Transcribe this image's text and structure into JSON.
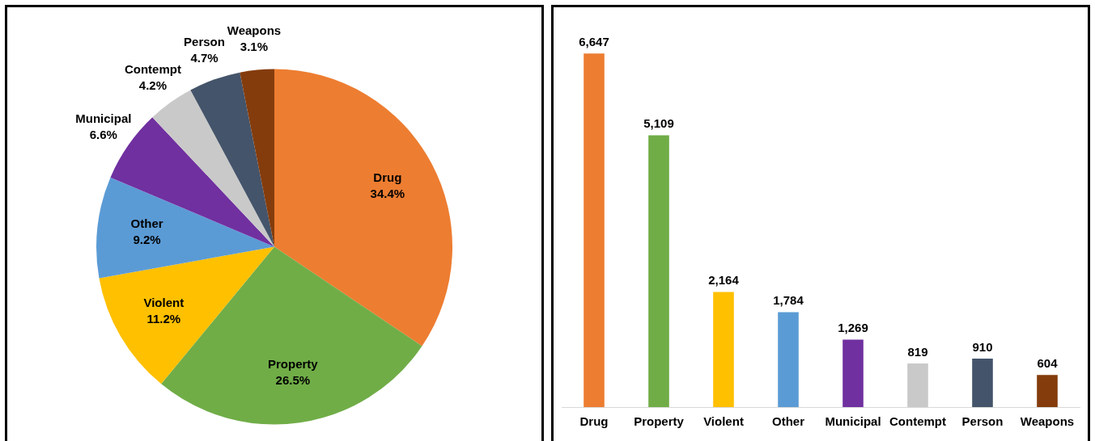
{
  "chart_data": [
    {
      "type": "pie",
      "categories": [
        "Drug",
        "Property",
        "Violent",
        "Other",
        "Municipal",
        "Contempt",
        "Person",
        "Weapons"
      ],
      "values": [
        34.4,
        26.5,
        11.2,
        9.2,
        6.6,
        4.2,
        4.7,
        3.1
      ],
      "colors": [
        "#ed7d31",
        "#70ad47",
        "#ffc000",
        "#5b9bd5",
        "#7030a0",
        "#c9c9c9",
        "#44546a",
        "#843c0c"
      ],
      "value_labels": [
        "34.4%",
        "26.5%",
        "11.2%",
        "9.2%",
        "6.6%",
        "4.2%",
        "4.7%",
        "3.1%"
      ],
      "legend": false
    },
    {
      "type": "bar",
      "categories": [
        "Drug",
        "Property",
        "Violent",
        "Other",
        "Municipal",
        "Contempt",
        "Person",
        "Weapons"
      ],
      "values": [
        6647,
        5109,
        2164,
        1784,
        1269,
        819,
        910,
        604
      ],
      "colors": [
        "#ed7d31",
        "#70ad47",
        "#ffc000",
        "#5b9bd5",
        "#7030a0",
        "#c9c9c9",
        "#44546a",
        "#843c0c"
      ],
      "value_labels": [
        "6,647",
        "5,109",
        "2,164",
        "1,784",
        "1,269",
        "819",
        "910",
        "604"
      ],
      "grid": false,
      "legend": false
    }
  ]
}
